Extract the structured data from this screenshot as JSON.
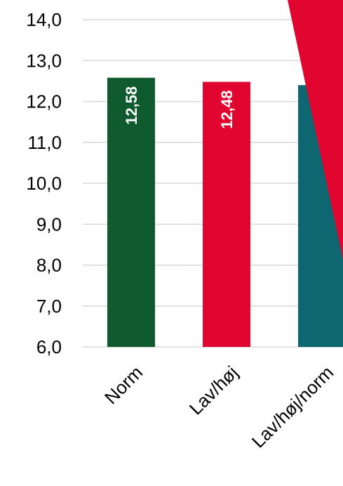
{
  "chart_data": {
    "type": "bar",
    "categories": [
      "Norm",
      "Lav/høj",
      "Lav/høj/norm"
    ],
    "values": [
      12.58,
      12.48,
      12.4
    ],
    "data_labels": [
      "12,58",
      "12,48",
      ""
    ],
    "ylim": [
      6.0,
      14.0
    ],
    "yticks": [
      "6,0",
      "7,0",
      "8,0",
      "9,0",
      "10,0",
      "11,0",
      "12,0",
      "13,0",
      "14,0"
    ],
    "grid": true,
    "colors": [
      "#0f5a2e",
      "#e1062f",
      "#0e6670"
    ],
    "overlay_color": "#e1062f"
  }
}
